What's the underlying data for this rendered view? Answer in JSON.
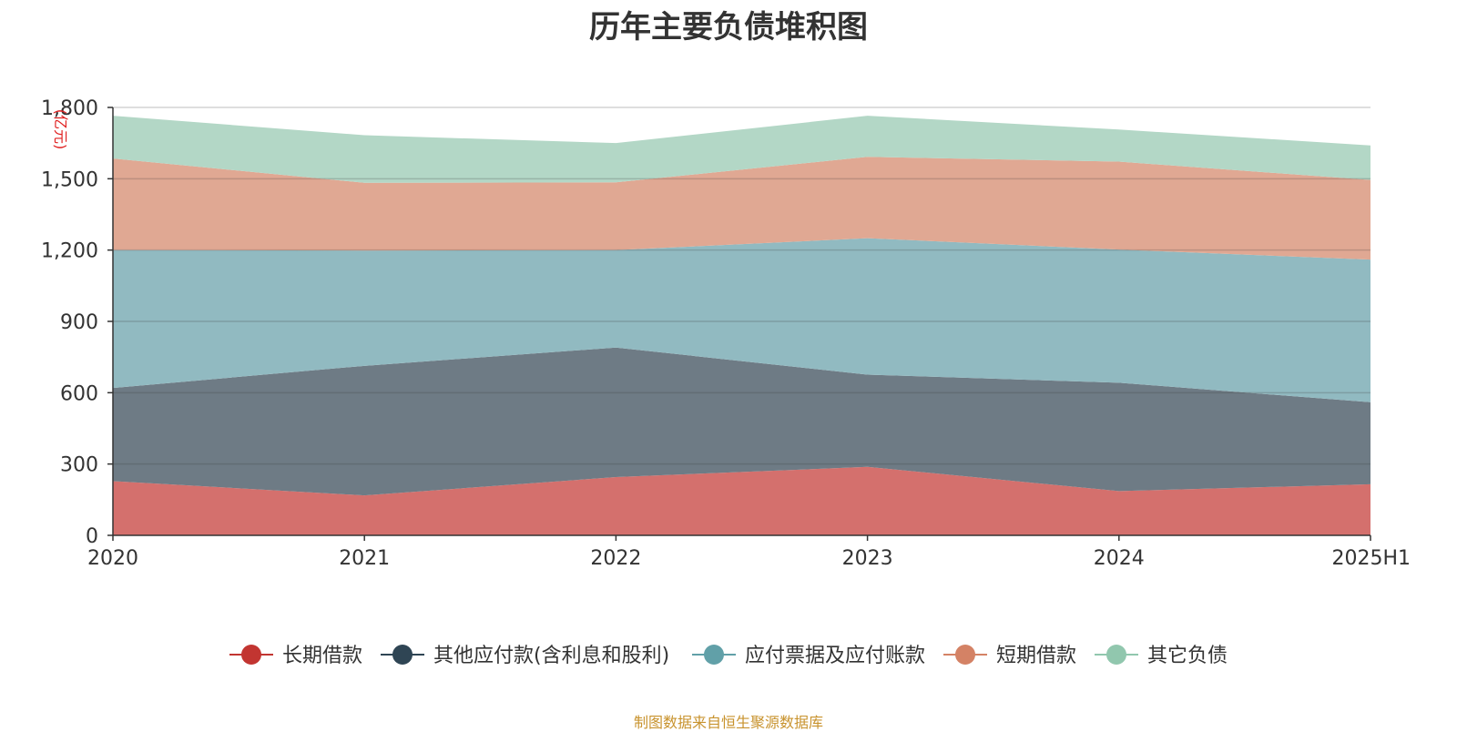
{
  "chart_data": {
    "type": "area",
    "stacked": true,
    "title": "历年主要负债堆积图",
    "unit_label": "(亿元)",
    "x": [
      "2020",
      "2021",
      "2022",
      "2023",
      "2024",
      "2025H1"
    ],
    "ylim": [
      0,
      1800
    ],
    "yticks": [
      0,
      300,
      600,
      900,
      1200,
      1500,
      1800
    ],
    "ytick_labels": [
      "0",
      "300",
      "600",
      "900",
      "1,200",
      "1,500",
      "1,800"
    ],
    "grid": true,
    "legend_position": "bottom",
    "series": [
      {
        "name": "长期借款",
        "color": "#c23531",
        "fill": "#d4706d",
        "values": [
          228,
          168,
          245,
          288,
          186,
          215
        ]
      },
      {
        "name": "其他应付款(含利息和股利)",
        "color": "#2f4554",
        "fill": "#6e7b85",
        "values": [
          392,
          545,
          545,
          388,
          456,
          345
        ]
      },
      {
        "name": "应付票据及应付账款",
        "color": "#61a0a8",
        "fill": "#91bac1",
        "values": [
          580,
          485,
          410,
          574,
          560,
          600
        ]
      },
      {
        "name": "短期借款",
        "color": "#d48265",
        "fill": "#e0a893",
        "values": [
          385,
          285,
          285,
          342,
          370,
          335
        ]
      },
      {
        "name": "其它负债",
        "color": "#91c7ae",
        "fill": "#b3d7c6",
        "values": [
          180,
          200,
          165,
          173,
          135,
          145
        ]
      }
    ]
  },
  "source_note": "制图数据来自恒生聚源数据库"
}
